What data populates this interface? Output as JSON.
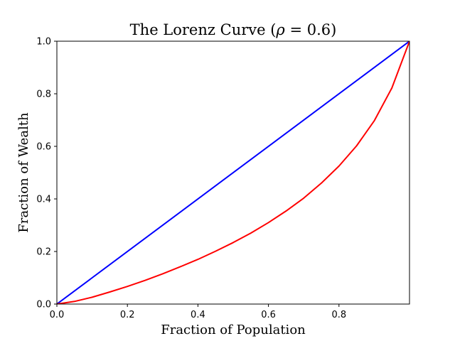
{
  "chart_data": {
    "type": "line",
    "title_prefix": "The Lorenz Curve (",
    "title_rho": "ρ",
    "title_suffix": " = 0.6)",
    "xlabel": "Fraction of Population",
    "ylabel": "Fraction of Wealth",
    "xlim": [
      0,
      1
    ],
    "ylim": [
      0,
      1
    ],
    "grid": false,
    "x_ticks": [
      0.0,
      0.2,
      0.4,
      0.6,
      0.8
    ],
    "x_tick_labels": [
      "0.0",
      "0.2",
      "0.4",
      "0.6",
      "0.8"
    ],
    "y_ticks": [
      0.0,
      0.2,
      0.4,
      0.6,
      0.8,
      1.0
    ],
    "y_tick_labels": [
      "0.0",
      "0.2",
      "0.4",
      "0.6",
      "0.8",
      "1.0"
    ],
    "series": [
      {
        "color": "#0000ff",
        "x": [
          0.0,
          1.0
        ],
        "y": [
          0.0,
          1.0
        ]
      },
      {
        "color": "#ff0000",
        "x": [
          0.0,
          0.05,
          0.1,
          0.15,
          0.2,
          0.25,
          0.3,
          0.35,
          0.4,
          0.45,
          0.5,
          0.55,
          0.6,
          0.65,
          0.7,
          0.75,
          0.8,
          0.85,
          0.9,
          0.95,
          1.0
        ],
        "y": [
          0.0,
          0.01,
          0.026,
          0.046,
          0.067,
          0.09,
          0.115,
          0.142,
          0.17,
          0.201,
          0.234,
          0.27,
          0.31,
          0.354,
          0.403,
          0.46,
          0.525,
          0.602,
          0.697,
          0.822,
          1.0
        ]
      }
    ]
  }
}
